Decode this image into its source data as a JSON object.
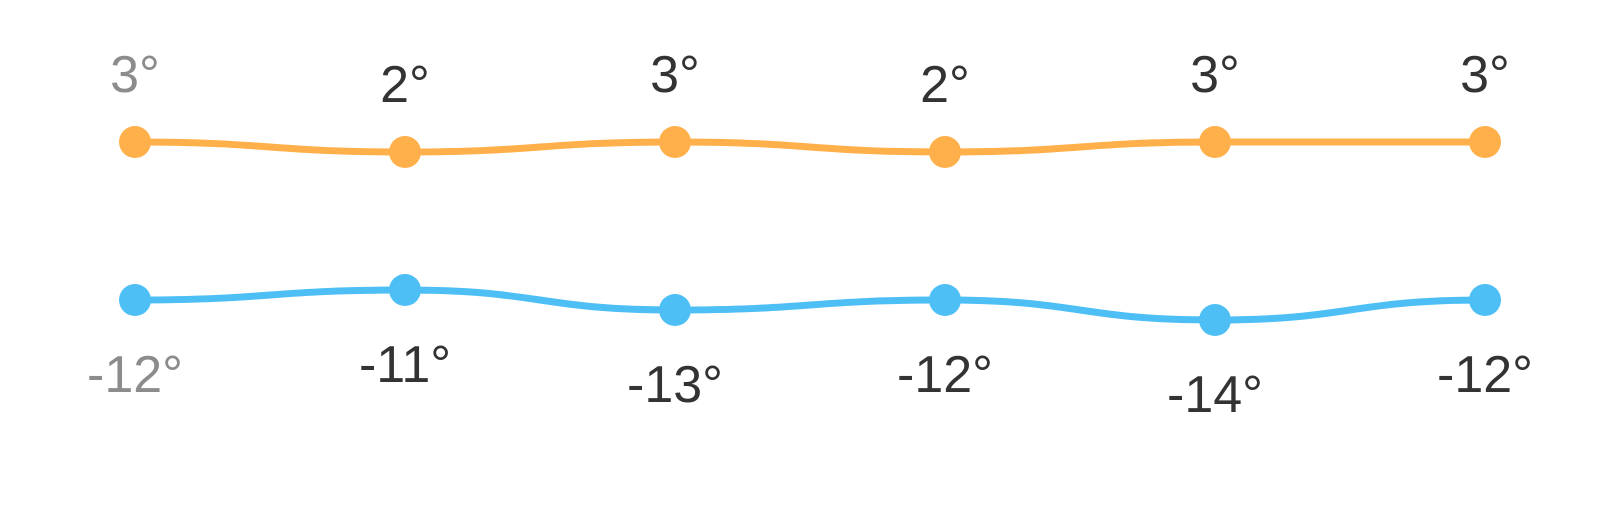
{
  "chart_data": {
    "type": "line",
    "categories": [
      "",
      "",
      "",
      "",
      "",
      ""
    ],
    "series": [
      {
        "values": [
          3,
          2,
          3,
          2,
          3,
          3
        ]
      },
      {
        "values": [
          -12,
          -11,
          -13,
          -12,
          -14,
          -12
        ]
      }
    ],
    "unit_suffix": "°",
    "high_labels": [
      "3°",
      "2°",
      "3°",
      "2°",
      "3°",
      "3°"
    ],
    "low_labels": [
      "-12°",
      "-11°",
      "-13°",
      "-12°",
      "-14°",
      "-12°"
    ],
    "colors": {
      "high": "#FFB04A",
      "low": "#4DBFF5",
      "label": "#333333",
      "label_first": "#8C8C8C"
    },
    "grid": false,
    "legend": "none"
  }
}
